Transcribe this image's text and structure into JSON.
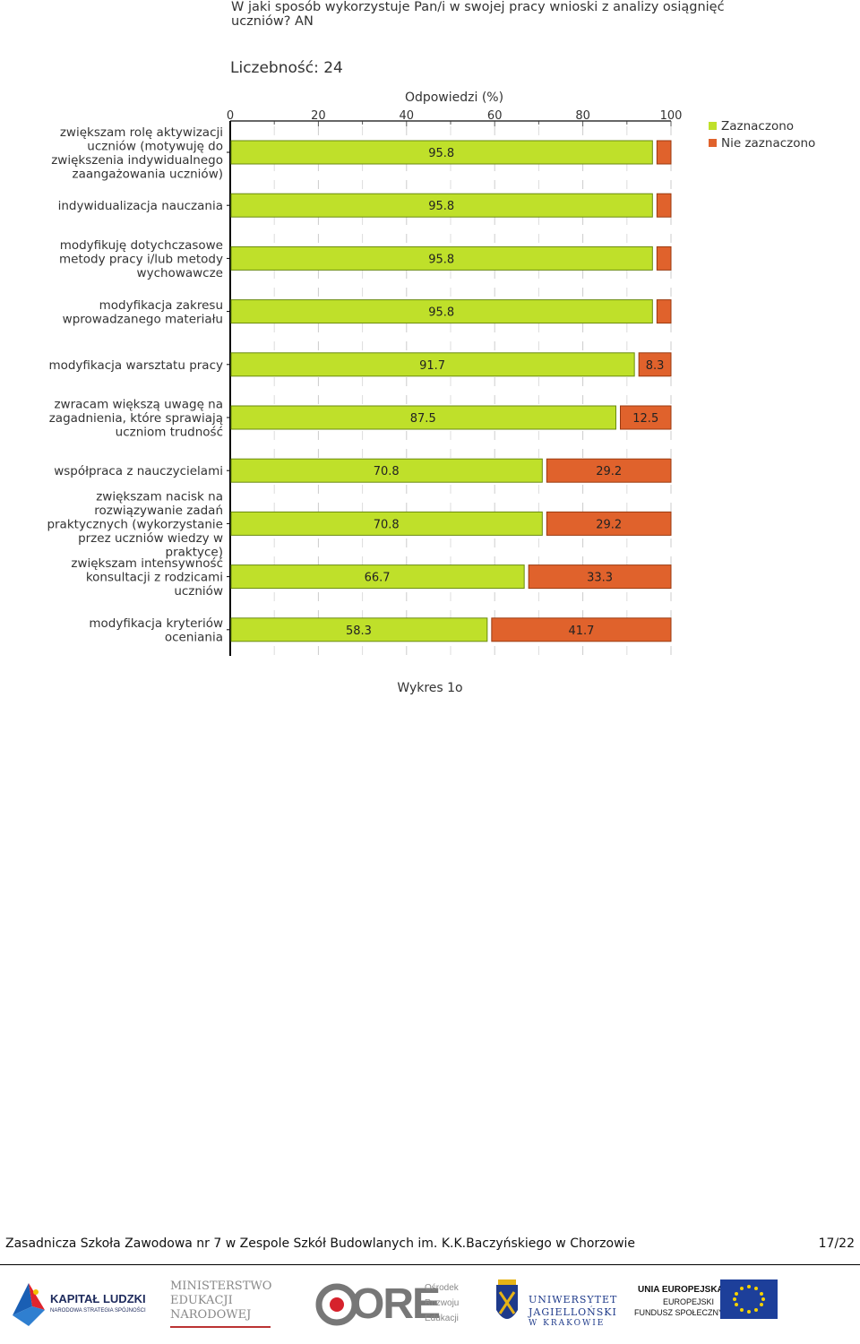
{
  "question": "W jaki sposób wykorzystuje Pan/i w swojej pracy wnioski z analizy osiągnięć uczniów? AN",
  "count_label": "Liczebność: 24",
  "caption": "Wykres 1o",
  "footer": {
    "school": "Zasadnicza Szkoła Zawodowa nr 7 w Zespole Szkół Budowlanych im. K.K.Baczyńskiego w Chorzowie",
    "page": "17/22"
  },
  "colors": {
    "selected": "#bfe02a",
    "not_selected": "#e0622c",
    "selected_border": "#6a8a10",
    "not_selected_border": "#9a3a10"
  },
  "logos": {
    "kapital": {
      "line1": "KAPITAŁ LUDZKI",
      "line2": "NARODOWA STRATEGIA SPÓJNOŚCI"
    },
    "men": {
      "line1": "MINISTERSTWO",
      "line2": "EDUKACJI",
      "line3": "NARODOWEJ"
    },
    "ore": {
      "mark": "ORE",
      "line1": "Ośrodek",
      "line2": "Rozwoju",
      "line3": "Edukacji"
    },
    "uj": {
      "line1": "UNIWERSYTET",
      "line2": "JAGIELLOŃSKI",
      "line3": "W KRAKOWIE"
    },
    "ue": {
      "line1": "UNIA EUROPEJSKA",
      "line2": "EUROPEJSKI",
      "line3": "FUNDUSZ SPOŁECZNY"
    }
  },
  "chart_data": {
    "type": "bar",
    "orientation": "horizontal",
    "stacked": true,
    "xlabel": "Odpowiedzi (%)",
    "xlim": [
      0,
      100
    ],
    "xticks": [
      "0",
      "20",
      "40",
      "60",
      "80",
      "100"
    ],
    "legend": [
      {
        "name": "Zaznaczono",
        "color": "#bfe02a"
      },
      {
        "name": "Nie zaznaczono",
        "color": "#e0622c"
      }
    ],
    "legend_position": "top-right",
    "categories": [
      [
        "zwiększam rolę aktywizacji",
        "uczniów (motywuję do",
        "zwiększenia indywidualnego",
        "zaangażowania uczniów)"
      ],
      [
        "indywidualizacja nauczania"
      ],
      [
        "modyfikuję dotychczasowe",
        "metody pracy i/lub metody",
        "wychowawcze"
      ],
      [
        "modyfikacja zakresu",
        "wprowadzanego materiału"
      ],
      [
        "modyfikacja warsztatu pracy"
      ],
      [
        "zwracam większą uwagę na",
        "zagadnienia, które sprawiają",
        "uczniom trudność"
      ],
      [
        "współpraca z nauczycielami"
      ],
      [
        "zwiększam nacisk na",
        "rozwiązywanie zadań",
        "praktycznych (wykorzystanie",
        "przez uczniów wiedzy w",
        "praktyce)"
      ],
      [
        "zwiększam intensywność",
        "konsultacji z rodzicami",
        "uczniów"
      ],
      [
        "modyfikacja kryteriów",
        "oceniania"
      ]
    ],
    "series": [
      {
        "name": "Zaznaczono",
        "values": [
          95.8,
          95.8,
          95.8,
          95.8,
          91.7,
          87.5,
          70.8,
          70.8,
          66.7,
          58.3
        ],
        "labels": [
          "95.8",
          "95.8",
          "95.8",
          "95.8",
          "91.7",
          "87.5",
          "70.8",
          "70.8",
          "66.7",
          "58.3"
        ]
      },
      {
        "name": "Nie zaznaczono",
        "values": [
          4.2,
          4.2,
          4.2,
          4.2,
          8.3,
          12.5,
          29.2,
          29.2,
          33.3,
          41.7
        ],
        "labels": [
          "",
          "",
          "",
          "",
          "8.3",
          "12.5",
          "29.2",
          "29.2",
          "33.3",
          "41.7"
        ]
      }
    ]
  }
}
